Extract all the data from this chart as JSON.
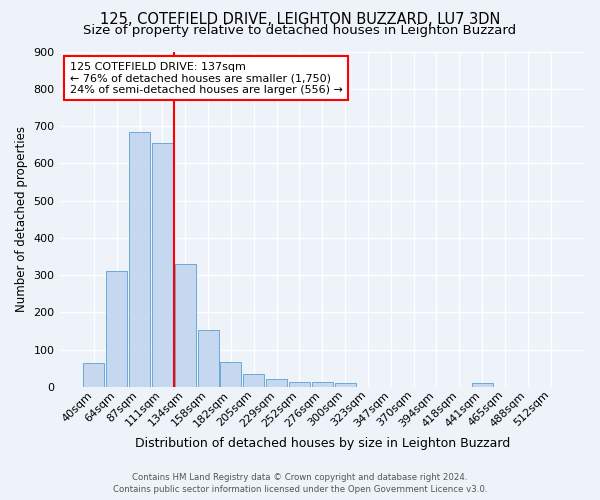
{
  "title": "125, COTEFIELD DRIVE, LEIGHTON BUZZARD, LU7 3DN",
  "subtitle": "Size of property relative to detached houses in Leighton Buzzard",
  "xlabel": "Distribution of detached houses by size in Leighton Buzzard",
  "ylabel": "Number of detached properties",
  "bin_labels": [
    "40sqm",
    "64sqm",
    "87sqm",
    "111sqm",
    "134sqm",
    "158sqm",
    "182sqm",
    "205sqm",
    "229sqm",
    "252sqm",
    "276sqm",
    "300sqm",
    "323sqm",
    "347sqm",
    "370sqm",
    "394sqm",
    "418sqm",
    "441sqm",
    "465sqm",
    "488sqm",
    "512sqm"
  ],
  "bar_values": [
    65,
    310,
    685,
    655,
    330,
    152,
    68,
    35,
    22,
    12,
    12,
    10,
    0,
    0,
    0,
    0,
    0,
    10,
    0,
    0,
    0
  ],
  "bar_color": "#c5d8f0",
  "bar_edge_color": "#5a9fd4",
  "vline_color": "red",
  "vline_index": 3.5,
  "annotation_text": "125 COTEFIELD DRIVE: 137sqm\n← 76% of detached houses are smaller (1,750)\n24% of semi-detached houses are larger (556) →",
  "annotation_box_color": "white",
  "annotation_box_edge_color": "red",
  "ylim": [
    0,
    900
  ],
  "yticks": [
    0,
    100,
    200,
    300,
    400,
    500,
    600,
    700,
    800,
    900
  ],
  "footer_line1": "Contains HM Land Registry data © Crown copyright and database right 2024.",
  "footer_line2": "Contains public sector information licensed under the Open Government Licence v3.0.",
  "bg_color": "#eef2f9",
  "grid_color": "#ffffff",
  "title_fontsize": 10.5,
  "subtitle_fontsize": 9.5,
  "xlabel_fontsize": 9,
  "ylabel_fontsize": 8.5,
  "tick_fontsize": 8,
  "annot_fontsize": 8
}
